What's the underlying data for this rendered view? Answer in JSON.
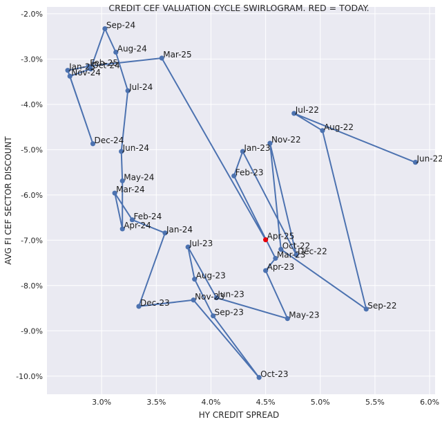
{
  "chart_data": {
    "type": "line",
    "title": "CREDIT CEF VALUATION CYCLE SWIRLOGRAM. RED = TODAY.",
    "xlabel": "HY CREDIT SPREAD",
    "ylabel": "AVG FI CEF SECTOR DISCOUNT",
    "xlim": [
      2.5,
      6.05
    ],
    "ylim": [
      -10.4,
      -1.85
    ],
    "x_ticks": [
      {
        "value": 3.0,
        "label": "3.0%"
      },
      {
        "value": 3.5,
        "label": "3.5%"
      },
      {
        "value": 4.0,
        "label": "4.0%"
      },
      {
        "value": 4.5,
        "label": "4.5%"
      },
      {
        "value": 5.0,
        "label": "5.0%"
      },
      {
        "value": 5.5,
        "label": "5.5%"
      },
      {
        "value": 6.0,
        "label": "6.0%"
      }
    ],
    "y_ticks": [
      {
        "value": -2.0,
        "label": "-2.0%"
      },
      {
        "value": -3.0,
        "label": "-3.0%"
      },
      {
        "value": -4.0,
        "label": "-4.0%"
      },
      {
        "value": -5.0,
        "label": "-5.0%"
      },
      {
        "value": -6.0,
        "label": "-6.0%"
      },
      {
        "value": -7.0,
        "label": "-7.0%"
      },
      {
        "value": -8.0,
        "label": "-8.0%"
      },
      {
        "value": -9.0,
        "label": "-9.0%"
      },
      {
        "value": -10.0,
        "label": "-10.0%"
      }
    ],
    "line_color": "#4c72b0",
    "today_color": "#e8000b",
    "points": [
      {
        "label": "Jun-22",
        "x": 5.87,
        "y": -5.28
      },
      {
        "label": "Jul-22",
        "x": 4.76,
        "y": -4.2
      },
      {
        "label": "Aug-22",
        "x": 5.02,
        "y": -4.58
      },
      {
        "label": "Sep-22",
        "x": 5.42,
        "y": -8.52
      },
      {
        "label": "Oct-22",
        "x": 4.64,
        "y": -7.2
      },
      {
        "label": "Nov-22",
        "x": 4.54,
        "y": -4.86
      },
      {
        "label": "Dec-22",
        "x": 4.78,
        "y": -7.32
      },
      {
        "label": "Jan-23",
        "x": 4.29,
        "y": -5.04
      },
      {
        "label": "Feb-23",
        "x": 4.21,
        "y": -5.58
      },
      {
        "label": "Mar-23",
        "x": 4.59,
        "y": -7.4
      },
      {
        "label": "Apr-23",
        "x": 4.5,
        "y": -7.67
      },
      {
        "label": "May-23",
        "x": 4.7,
        "y": -8.73
      },
      {
        "label": "Jun-23",
        "x": 4.05,
        "y": -8.27
      },
      {
        "label": "Jul-23",
        "x": 3.79,
        "y": -7.15
      },
      {
        "label": "Aug-23",
        "x": 3.85,
        "y": -7.86
      },
      {
        "label": "Sep-23",
        "x": 4.02,
        "y": -8.67
      },
      {
        "label": "Oct-23",
        "x": 4.44,
        "y": -10.03
      },
      {
        "label": "Nov-23",
        "x": 3.84,
        "y": -8.32
      },
      {
        "label": "Dec-23",
        "x": 3.34,
        "y": -8.46
      },
      {
        "label": "Jan-24",
        "x": 3.58,
        "y": -6.84
      },
      {
        "label": "Feb-24",
        "x": 3.28,
        "y": -6.55
      },
      {
        "label": "Mar-24",
        "x": 3.12,
        "y": -5.96
      },
      {
        "label": "Apr-24",
        "x": 3.19,
        "y": -6.75
      },
      {
        "label": "May-24",
        "x": 3.19,
        "y": -5.69
      },
      {
        "label": "Jun-24",
        "x": 3.18,
        "y": -5.04
      },
      {
        "label": "Jul-24",
        "x": 3.24,
        "y": -3.7
      },
      {
        "label": "Aug-24",
        "x": 3.13,
        "y": -2.85
      },
      {
        "label": "Sep-24",
        "x": 3.03,
        "y": -2.33
      },
      {
        "label": "Oct-24",
        "x": 2.9,
        "y": -3.22
      },
      {
        "label": "Nov-24",
        "x": 2.71,
        "y": -3.38
      },
      {
        "label": "Dec-24",
        "x": 2.92,
        "y": -4.87
      },
      {
        "label": "Jan-25",
        "x": 2.69,
        "y": -3.25
      },
      {
        "label": "Feb-25",
        "x": 2.88,
        "y": -3.16
      },
      {
        "label": "Mar-25",
        "x": 3.55,
        "y": -2.98
      },
      {
        "label": "Apr-25",
        "x": 4.5,
        "y": -6.99
      }
    ]
  }
}
